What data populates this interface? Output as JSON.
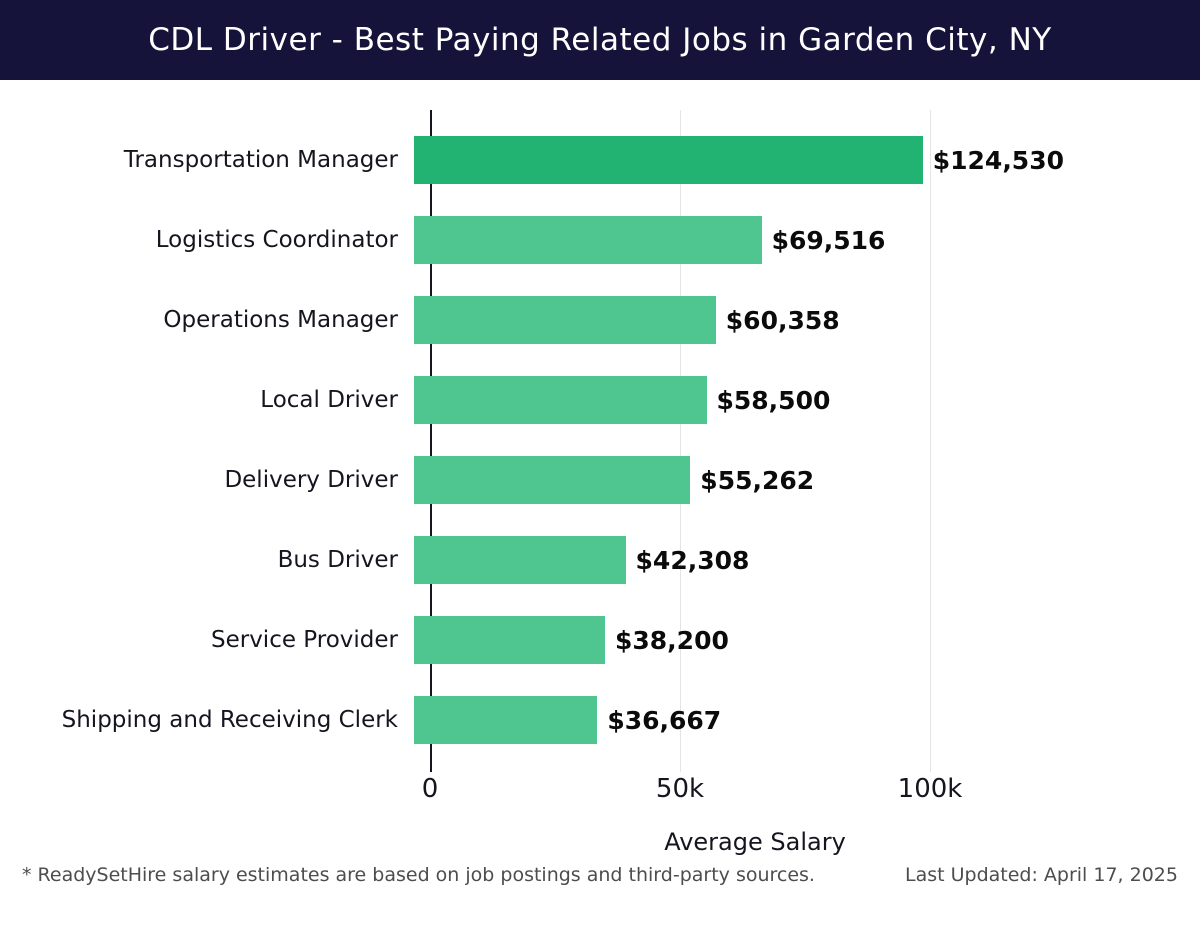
{
  "header": {
    "title": "CDL Driver - Best Paying Related Jobs in Garden City, NY"
  },
  "colors": {
    "header_bg": "#151339",
    "bar_highlight": "#22b373",
    "bar_default": "#4fc68f",
    "gridline": "#e4e4e4",
    "axis_line": "#16151f"
  },
  "chart_data": {
    "type": "bar",
    "orientation": "horizontal",
    "title": "CDL Driver - Best Paying Related Jobs in Garden City, NY",
    "categories": [
      "Transportation Manager",
      "Logistics Coordinator",
      "Operations Manager",
      "Local Driver",
      "Delivery Driver",
      "Bus Driver",
      "Service Provider",
      "Shipping and Receiving Clerk"
    ],
    "values": [
      124530,
      69516,
      60358,
      58500,
      55262,
      42308,
      38200,
      36667
    ],
    "value_labels": [
      "$124,530",
      "$69,516",
      "$60,358",
      "$58,500",
      "$55,262",
      "$42,308",
      "$38,200",
      "$36,667"
    ],
    "xlabel": "Average Salary",
    "ylabel": "",
    "xlim": [
      0,
      130000
    ],
    "xticks": [
      {
        "value": 0,
        "label": "0"
      },
      {
        "value": 50000,
        "label": "50k"
      },
      {
        "value": 100000,
        "label": "100k"
      }
    ],
    "grid": "vertical-light",
    "legend": "none"
  },
  "footer": {
    "footnote": "* ReadySetHire salary estimates are based on job postings and third-party sources.",
    "last_updated": "Last Updated: April 17, 2025"
  }
}
